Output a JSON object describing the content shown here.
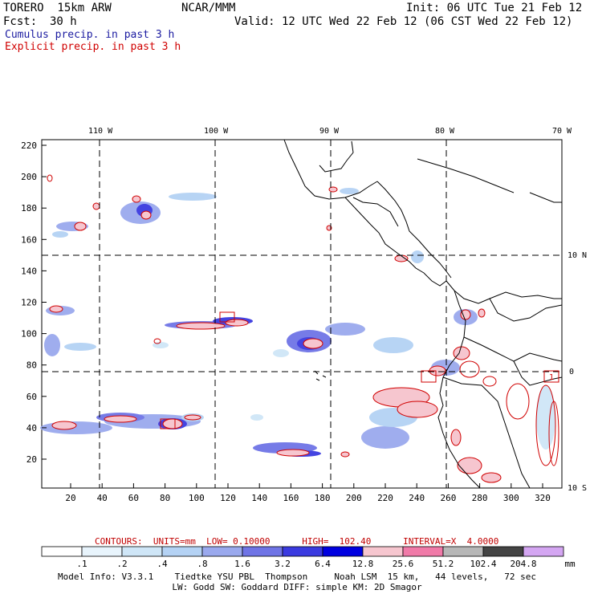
{
  "header": {
    "model": "TORERO  15km ARW",
    "org": "NCAR/MMM",
    "init": "Init: 06 UTC Tue 21 Feb 12",
    "fcst_label": "Fcst:",
    "fcst_value": "30 h",
    "valid": "Valid: 12 UTC Wed 22 Feb 12 (06 CST Wed 22 Feb 12)"
  },
  "legend": {
    "cumulus": "Cumulus precip. in past 3 h",
    "explicit": "Explicit precip. in past 3 h",
    "cumulus_color": "#1a1aa0",
    "explicit_color": "#d00000"
  },
  "map": {
    "lon_labels": [
      "110 W",
      "100 W",
      "90 W",
      "80 W",
      "70 W"
    ],
    "lat_labels": [
      "10 N",
      "0",
      "10 S"
    ],
    "y_ticks": [
      "220",
      "200",
      "180",
      "160",
      "140",
      "120",
      "100",
      "80",
      "60",
      "40",
      "20"
    ],
    "x_ticks": [
      "20",
      "40",
      "60",
      "80",
      "100",
      "120",
      "140",
      "160",
      "180",
      "200",
      "220",
      "240",
      "260",
      "280",
      "300",
      "320"
    ],
    "box_label": "1"
  },
  "colorbar": {
    "values": [
      ".1",
      ".2",
      ".4",
      ".8",
      "1.6",
      "3.2",
      "6.4",
      "12.8",
      "25.6",
      "51.2",
      "102.4",
      "204.8"
    ],
    "unit": "mm",
    "colors": [
      "#ffffff",
      "#e8f4fc",
      "#cfe6f7",
      "#b4d2f4",
      "#9aa9ee",
      "#6f74e6",
      "#3a3ae0",
      "#0000e0",
      "#f6c6cf",
      "#f07aa8",
      "#b7b7b7",
      "#444444",
      "#d4a6f2"
    ]
  },
  "contours": {
    "label": "CONTOURS:  UNITS=mm  LOW= 0.10000      HIGH=  102.40      INTERVAL=X  4.0000"
  },
  "footer": {
    "line1": "Model Info: V3.3.1    Tiedtke YSU PBL  Thompson     Noah LSM  15 km,   44 levels,   72 sec",
    "line2": "LW: Godd SW: Goddard DIFF: simple KM: 2D Smagor"
  }
}
